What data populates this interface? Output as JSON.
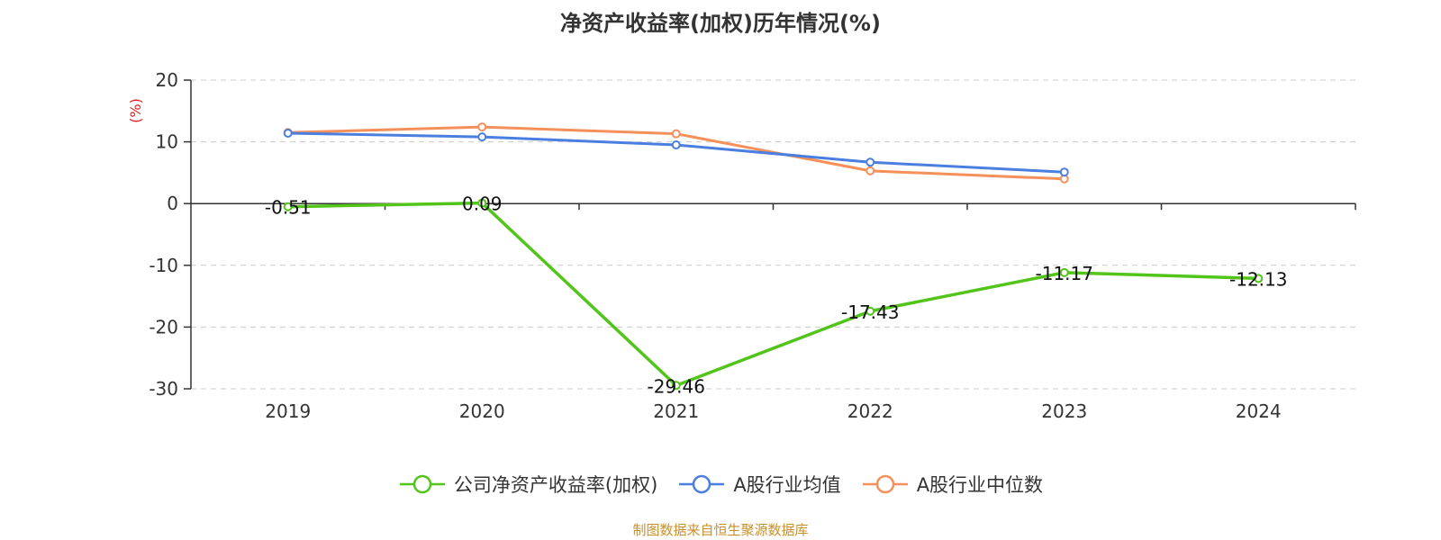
{
  "source_note": "制图数据来自恒生聚源数据库",
  "chart_data": {
    "type": "line",
    "title": "净资产收益率(加权)历年情况(%)",
    "ylabel": "(%)",
    "xlabel": "",
    "ylim": [
      -30,
      20
    ],
    "yticks": [
      20,
      10,
      0,
      -10,
      -20,
      -30
    ],
    "grid": true,
    "legend_position": "bottom-center",
    "categories": [
      "2019",
      "2020",
      "2021",
      "2022",
      "2023",
      "2024"
    ],
    "series": [
      {
        "name": "公司净资产收益率(加权)",
        "color": "#52c41a",
        "values": [
          -0.51,
          0.09,
          -29.46,
          -17.43,
          -11.17,
          -12.13
        ],
        "labels": [
          "-0.51",
          "0.09",
          "-29.46",
          "-17.43",
          "-11.17",
          "-12.13"
        ]
      },
      {
        "name": "A股行业均值",
        "color": "#4a7fe0",
        "values": [
          11.4,
          10.8,
          9.5,
          6.7,
          5.1,
          null
        ]
      },
      {
        "name": "A股行业中位数",
        "color": "#f5905a",
        "values": [
          11.5,
          12.4,
          11.3,
          5.3,
          4.0,
          null
        ]
      }
    ]
  }
}
